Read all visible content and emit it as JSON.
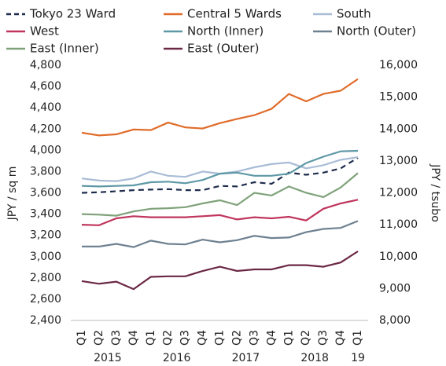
{
  "chart_data": {
    "type": "line",
    "categories": [
      "Q1",
      "Q2",
      "Q3",
      "Q4",
      "Q1",
      "Q2",
      "Q3",
      "Q4",
      "Q1",
      "Q2",
      "Q3",
      "Q4",
      "Q1",
      "Q2",
      "Q3",
      "Q4",
      "Q1"
    ],
    "years": [
      "2015",
      "2016",
      "2017",
      "2018",
      "19"
    ],
    "ylabel": "JPY / sq m",
    "y2label": "JPY / tsubo",
    "ylim": [
      2400,
      4800
    ],
    "yticks": [
      {
        "value": 2400,
        "label": "2,400"
      },
      {
        "value": 2600,
        "label": "2,600"
      },
      {
        "value": 2800,
        "label": "2,800"
      },
      {
        "value": 3000,
        "label": "3,000"
      },
      {
        "value": 3200,
        "label": "3,200"
      },
      {
        "value": 3400,
        "label": "3,400"
      },
      {
        "value": 3600,
        "label": "3,600"
      },
      {
        "value": 3800,
        "label": "3,800"
      },
      {
        "value": 4000,
        "label": "4,000"
      },
      {
        "value": 4200,
        "label": "4,200"
      },
      {
        "value": 4400,
        "label": "4,400"
      },
      {
        "value": 4600,
        "label": "4,600"
      },
      {
        "value": 4800,
        "label": "4,800"
      }
    ],
    "y2lim": [
      8000,
      16000
    ],
    "y2ticks": [
      {
        "value": 8000,
        "label": "8,000"
      },
      {
        "value": 9000,
        "label": "9,000"
      },
      {
        "value": 10000,
        "label": "10,000"
      },
      {
        "value": 11000,
        "label": "11,000"
      },
      {
        "value": 12000,
        "label": "12,000"
      },
      {
        "value": 13000,
        "label": "13,000"
      },
      {
        "value": 14000,
        "label": "14,000"
      },
      {
        "value": 15000,
        "label": "15,000"
      },
      {
        "value": 16000,
        "label": "16,000"
      }
    ],
    "grid": false,
    "series": [
      {
        "name": "Tokyo 23 Ward",
        "color": "#1f2d4e",
        "dashed": true,
        "values": [
          3600,
          3605,
          3615,
          3625,
          3630,
          3635,
          3625,
          3625,
          3665,
          3660,
          3700,
          3685,
          3790,
          3770,
          3790,
          3830,
          3930
        ]
      },
      {
        "name": "Central 5 Wards",
        "color": "#e06c2a",
        "values": [
          4165,
          4140,
          4150,
          4195,
          4190,
          4260,
          4215,
          4205,
          4255,
          4295,
          4330,
          4390,
          4530,
          4460,
          4530,
          4560,
          4670
        ]
      },
      {
        "name": "South",
        "color": "#a9bcd6",
        "values": [
          3735,
          3715,
          3710,
          3735,
          3800,
          3760,
          3750,
          3800,
          3780,
          3800,
          3840,
          3870,
          3885,
          3830,
          3860,
          3910,
          3935
        ]
      },
      {
        "name": "West",
        "color": "#c0365d",
        "values": [
          3300,
          3295,
          3360,
          3380,
          3370,
          3370,
          3370,
          3380,
          3390,
          3350,
          3370,
          3360,
          3375,
          3340,
          3450,
          3500,
          3535
        ]
      },
      {
        "name": "North (Inner)",
        "color": "#5d98a6",
        "values": [
          3665,
          3660,
          3665,
          3670,
          3700,
          3705,
          3690,
          3720,
          3780,
          3790,
          3760,
          3760,
          3780,
          3880,
          3940,
          3990,
          3995
        ]
      },
      {
        "name": "North (Outer)",
        "color": "#6e8191",
        "values": [
          3095,
          3095,
          3120,
          3090,
          3150,
          3120,
          3115,
          3160,
          3135,
          3155,
          3195,
          3175,
          3180,
          3230,
          3260,
          3270,
          3335
        ]
      },
      {
        "name": "East (Inner)",
        "color": "#7fa27a",
        "values": [
          3400,
          3395,
          3385,
          3425,
          3450,
          3455,
          3465,
          3500,
          3530,
          3485,
          3600,
          3575,
          3660,
          3600,
          3560,
          3650,
          3785
        ]
      },
      {
        "name": "East (Outer)",
        "color": "#6b2845",
        "values": [
          2770,
          2745,
          2765,
          2695,
          2810,
          2815,
          2815,
          2865,
          2905,
          2865,
          2880,
          2880,
          2920,
          2920,
          2905,
          2945,
          3050
        ]
      }
    ]
  }
}
